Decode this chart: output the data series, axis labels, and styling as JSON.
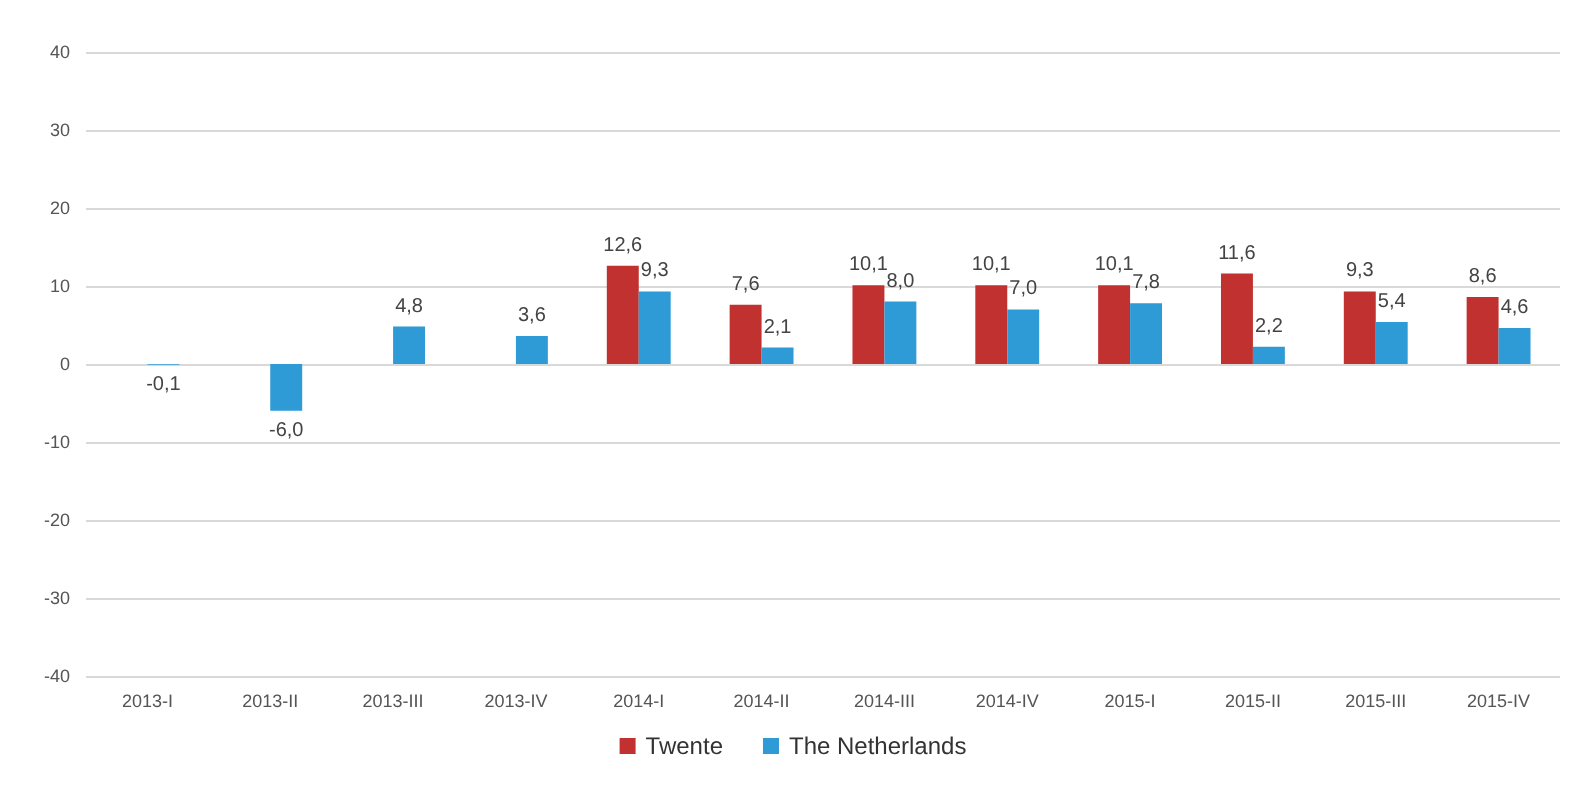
{
  "chart_data": {
    "type": "bar",
    "categories": [
      "2013-I",
      "2013-II",
      "2013-III",
      "2013-IV",
      "2014-I",
      "2014-II",
      "2014-III",
      "2014-IV",
      "2015-I",
      "2015-II",
      "2015-III",
      "2015-IV"
    ],
    "series": [
      {
        "name": "Twente",
        "color": "#c0312f",
        "values": [
          null,
          null,
          null,
          null,
          12.6,
          7.6,
          10.1,
          10.1,
          10.1,
          11.6,
          9.3,
          8.6
        ],
        "value_labels": [
          null,
          null,
          null,
          null,
          "12,6",
          "7,6",
          "10,1",
          "10,1",
          "10,1",
          "11,6",
          "9,3",
          "8,6"
        ]
      },
      {
        "name": "The Netherlands",
        "color": "#2e9bd6",
        "values": [
          -0.1,
          -6.0,
          4.8,
          3.6,
          9.3,
          2.1,
          8.0,
          7.0,
          7.8,
          2.2,
          5.4,
          4.6
        ],
        "value_labels": [
          "-0,1",
          "-6,0",
          "4,8",
          "3,6",
          "9,3",
          "2,1",
          "8,0",
          "7,0",
          "7,8",
          "2,2",
          "5,4",
          "4,6"
        ]
      }
    ],
    "ylim": [
      -40,
      40
    ],
    "yticks": [
      -40,
      -30,
      -20,
      -10,
      0,
      10,
      20,
      30,
      40
    ],
    "grid": "y",
    "legend": "bottom"
  }
}
